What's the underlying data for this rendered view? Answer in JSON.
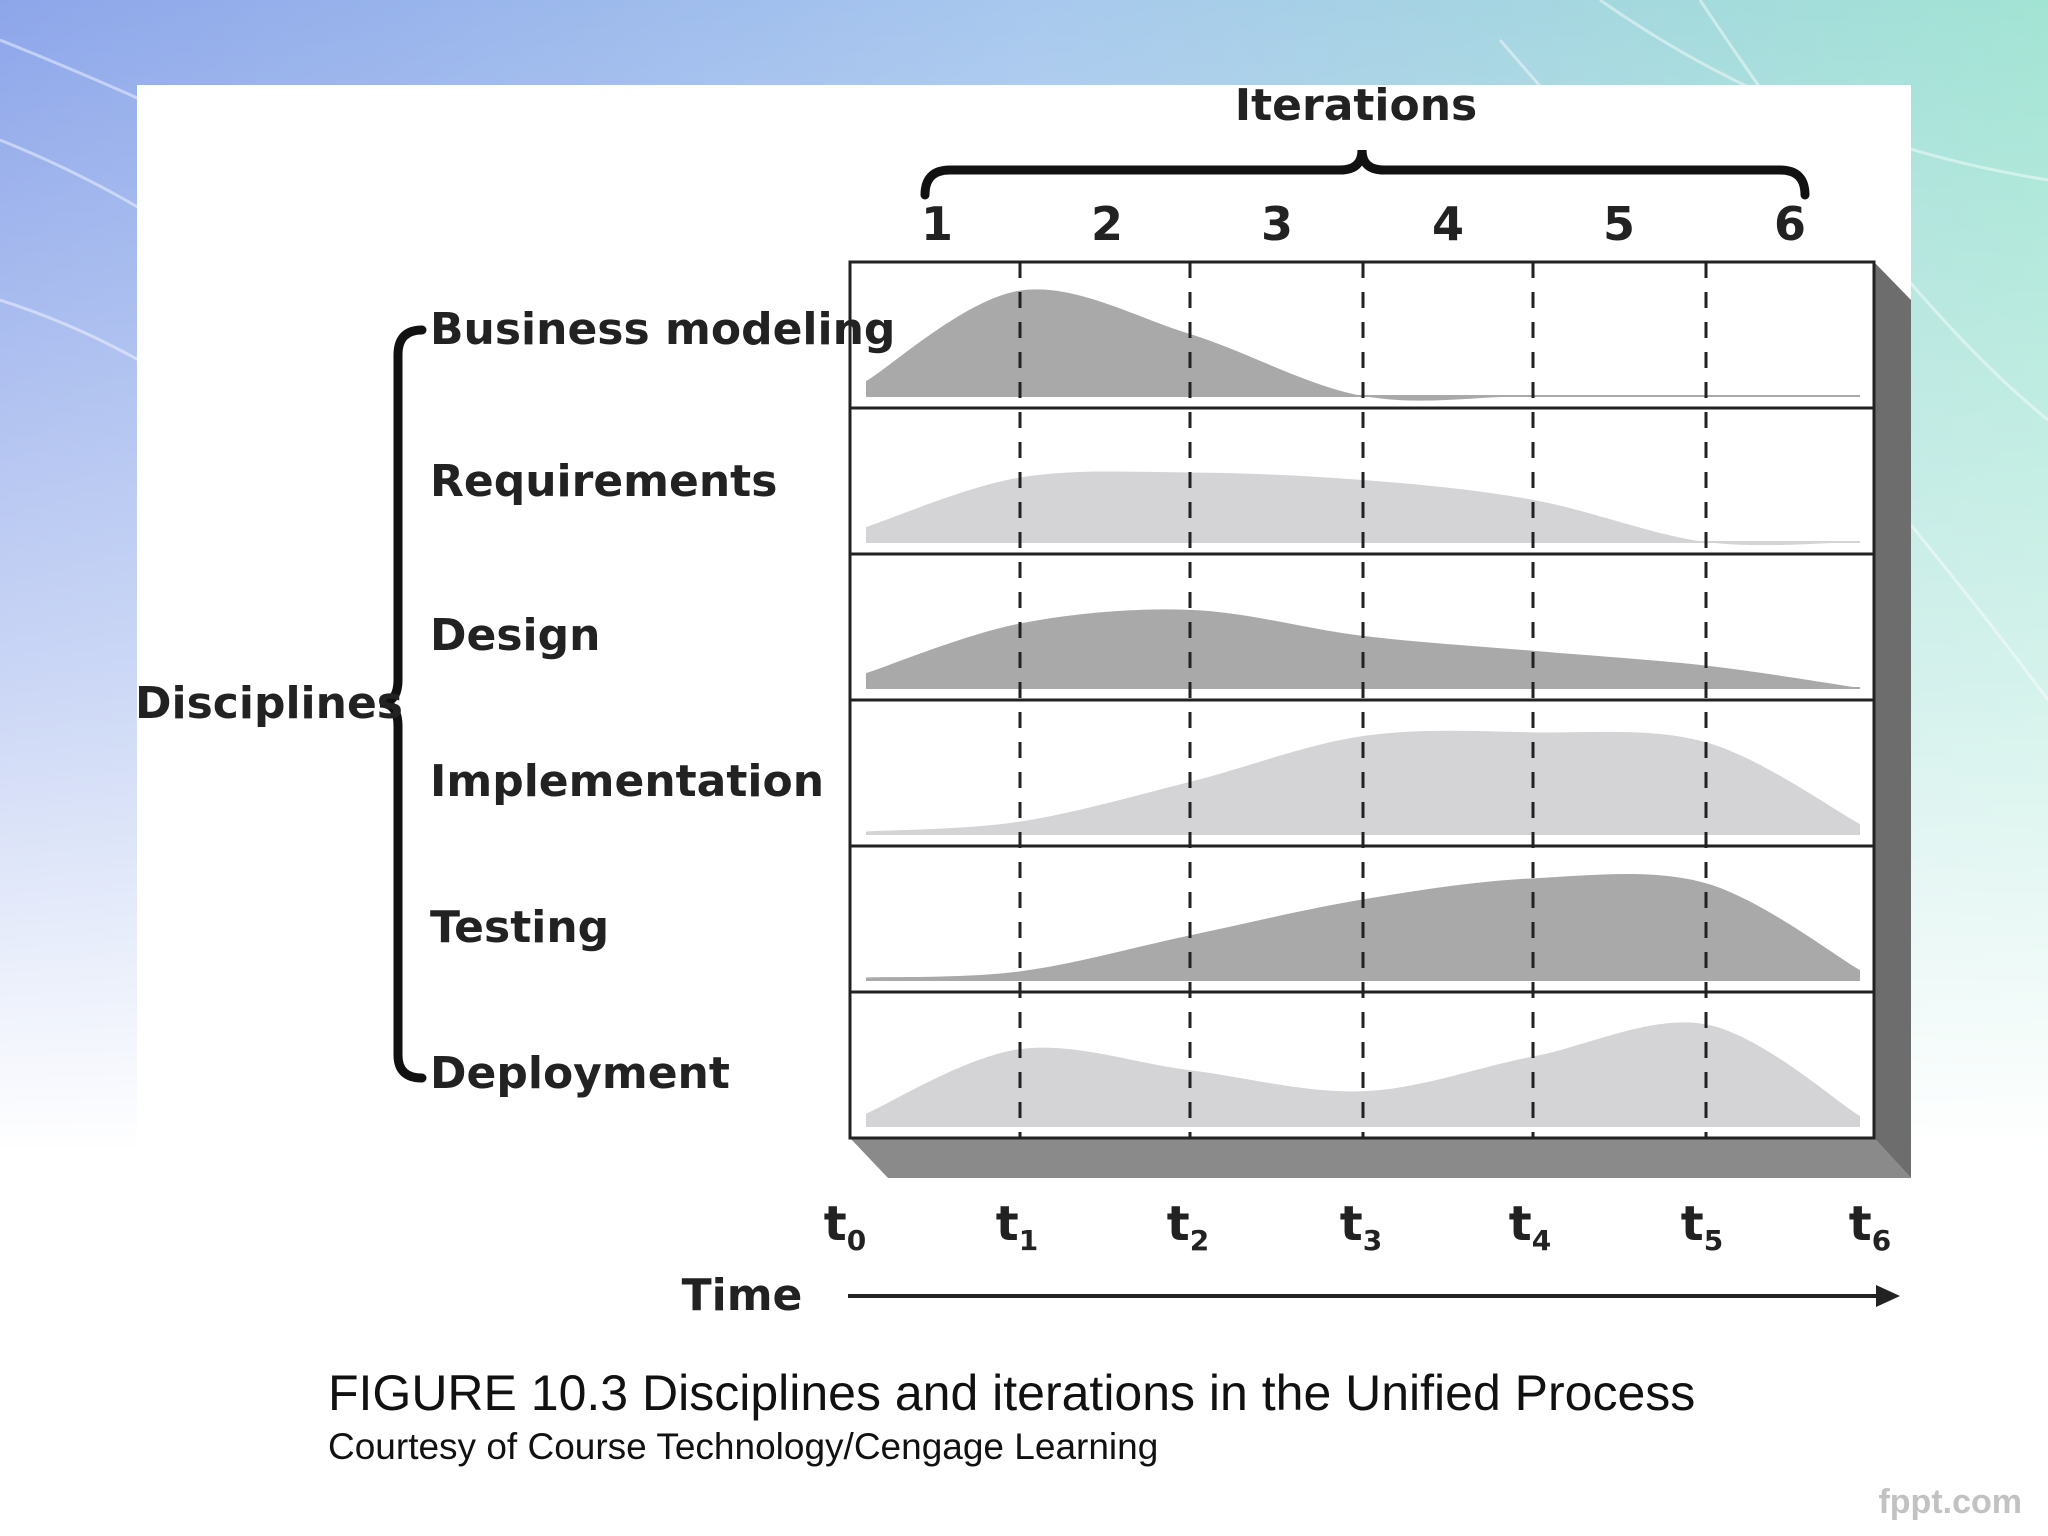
{
  "background": {
    "gradient_left": "#8fa8ea",
    "gradient_right": "#9fe3d2",
    "bottom": "#ffffff"
  },
  "diagram": {
    "iterations_label": "Iterations",
    "iterations": [
      "1",
      "2",
      "3",
      "4",
      "5",
      "6"
    ],
    "disciplines_label": "Disciplines",
    "time_label": "Time",
    "time_markers": [
      "t",
      "t",
      "t",
      "t",
      "t",
      "t",
      "t"
    ],
    "time_subscripts": [
      "0",
      "1",
      "2",
      "3",
      "4",
      "5",
      "6"
    ],
    "disciplines": [
      {
        "name": "Business modeling",
        "tone": "#a9a9a9",
        "effort": [
          0.12,
          0.85,
          0.5,
          0.0,
          0.0,
          0.0,
          0.0
        ]
      },
      {
        "name": "Requirements",
        "tone": "#d4d4d6",
        "effort": [
          0.12,
          0.52,
          0.56,
          0.5,
          0.34,
          0.0,
          0.0
        ]
      },
      {
        "name": "Design",
        "tone": "#a9a9a9",
        "effort": [
          0.12,
          0.52,
          0.63,
          0.42,
          0.3,
          0.18,
          0.0
        ]
      },
      {
        "name": "Implementation",
        "tone": "#d4d4d6",
        "effort": [
          0.02,
          0.1,
          0.42,
          0.79,
          0.82,
          0.74,
          0.08
        ]
      },
      {
        "name": "Testing",
        "tone": "#a9a9a9",
        "effort": [
          0.02,
          0.07,
          0.36,
          0.65,
          0.82,
          0.78,
          0.08
        ]
      },
      {
        "name": "Deployment",
        "tone": "#d4d4d6",
        "effort": [
          0.1,
          0.62,
          0.45,
          0.28,
          0.56,
          0.82,
          0.08
        ]
      }
    ]
  },
  "caption": {
    "title": "FIGURE 10.3 Disciplines and iterations in the Unified Process",
    "credit": "Courtesy of Course Technology/Cengage Learning"
  },
  "watermark": "fppt.com"
}
